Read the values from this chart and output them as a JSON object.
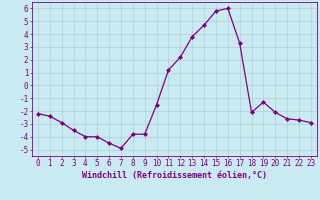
{
  "x": [
    0,
    1,
    2,
    3,
    4,
    5,
    6,
    7,
    8,
    9,
    10,
    11,
    12,
    13,
    14,
    15,
    16,
    17,
    18,
    19,
    20,
    21,
    22,
    23
  ],
  "y": [
    -2.2,
    -2.4,
    -2.9,
    -3.5,
    -4.0,
    -4.0,
    -4.5,
    -4.9,
    -3.8,
    -3.8,
    -1.5,
    1.2,
    2.2,
    3.8,
    4.7,
    5.8,
    6.0,
    3.3,
    -2.1,
    -1.3,
    -2.1,
    -2.6,
    -2.7,
    -2.9
  ],
  "line_color": "#800080",
  "marker": "D",
  "marker_size": 2.0,
  "bg_color": "#c8eaf0",
  "grid_color": "#b0d0d8",
  "xlabel": "Windchill (Refroidissement éolien,°C)",
  "ylabel": "",
  "title": "",
  "xlim": [
    -0.5,
    23.5
  ],
  "ylim": [
    -5.5,
    6.5
  ],
  "yticks": [
    -5,
    -4,
    -3,
    -2,
    -1,
    0,
    1,
    2,
    3,
    4,
    5,
    6
  ],
  "xticks": [
    0,
    1,
    2,
    3,
    4,
    5,
    6,
    7,
    8,
    9,
    10,
    11,
    12,
    13,
    14,
    15,
    16,
    17,
    18,
    19,
    20,
    21,
    22,
    23
  ],
  "tick_color": "#800080",
  "label_color": "#800080",
  "label_fontsize": 6.0,
  "tick_fontsize": 5.5,
  "linewidth": 0.9
}
